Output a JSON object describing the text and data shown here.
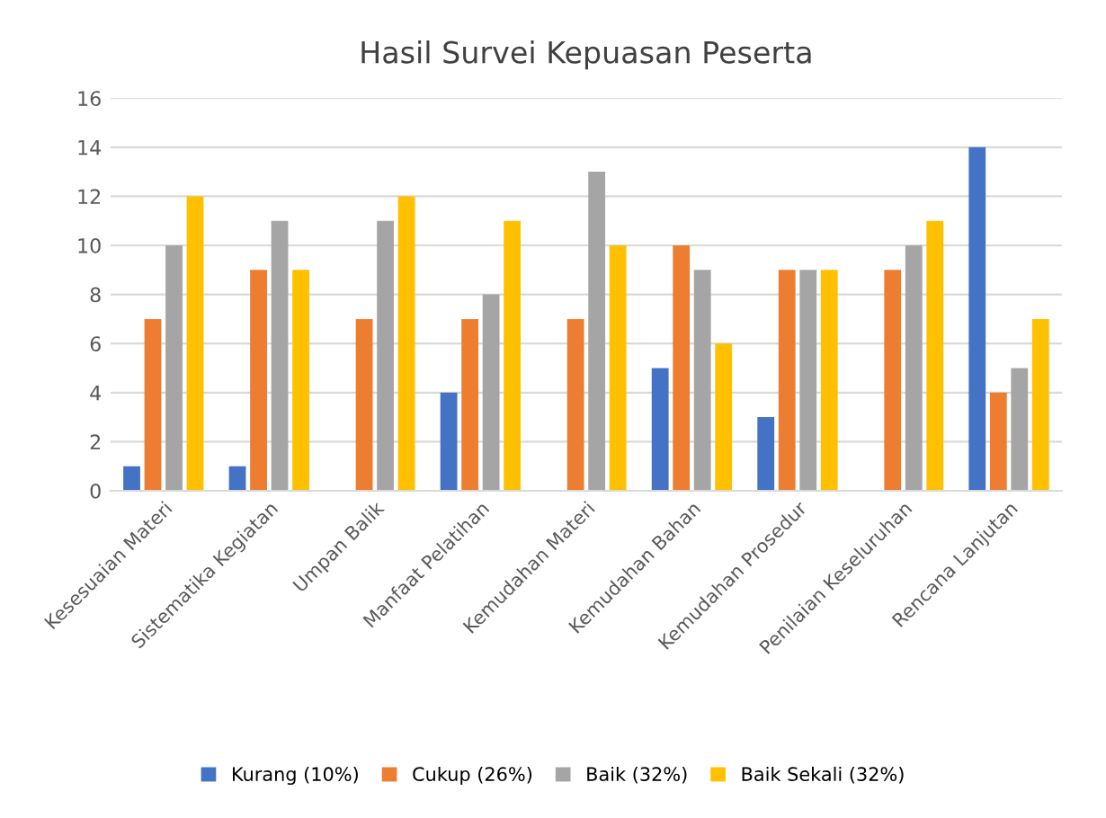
{
  "chart_data": {
    "type": "bar",
    "title": "Hasil Survei Kepuasan Peserta",
    "categories": [
      "Kesesuaian Materi",
      "Sistematika Kegiatan",
      "Umpan Balik",
      "Manfaat Pelatihan",
      "Kemudahan Materi",
      "Kemudahan Bahan",
      "Kemudahan Prosedur",
      "Penilaian Keseluruhan",
      "Rencana Lanjutan"
    ],
    "series": [
      {
        "name": "Kurang (10%)",
        "color": "#4472c4",
        "values": [
          1,
          1,
          0,
          4,
          0,
          5,
          3,
          0,
          14
        ]
      },
      {
        "name": "Cukup (26%)",
        "color": "#ed7d31",
        "values": [
          7,
          9,
          7,
          7,
          7,
          10,
          9,
          9,
          4
        ]
      },
      {
        "name": "Baik (32%)",
        "color": "#a5a5a5",
        "values": [
          10,
          11,
          11,
          8,
          13,
          9,
          9,
          10,
          5
        ]
      },
      {
        "name": "Baik Sekali (32%)",
        "color": "#ffc000",
        "values": [
          12,
          9,
          12,
          11,
          10,
          6,
          9,
          11,
          7
        ]
      }
    ],
    "ylim": [
      0,
      16
    ],
    "yticks": [
      0,
      2,
      4,
      6,
      8,
      10,
      12,
      14,
      16
    ],
    "grid": "y",
    "legend": "bottom"
  }
}
